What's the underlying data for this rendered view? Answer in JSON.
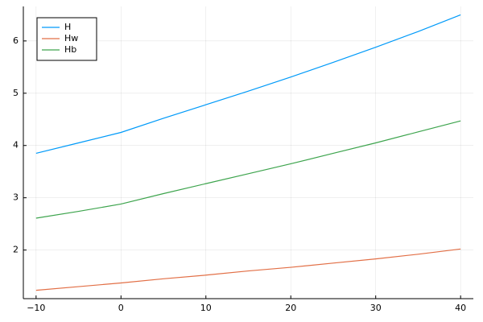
{
  "chart_data": {
    "type": "line",
    "x": [
      -10,
      -5,
      0,
      5,
      10,
      15,
      20,
      25,
      30,
      35,
      40
    ],
    "series": [
      {
        "name": "H",
        "color": "#009af9",
        "values": [
          3.85,
          4.05,
          4.25,
          4.52,
          4.78,
          5.04,
          5.31,
          5.59,
          5.88,
          6.18,
          6.5
        ]
      },
      {
        "name": "Hw",
        "color": "#e26f46",
        "values": [
          1.23,
          1.3,
          1.37,
          1.45,
          1.52,
          1.6,
          1.67,
          1.75,
          1.83,
          1.92,
          2.02
        ]
      },
      {
        "name": "Hb",
        "color": "#3da44d",
        "values": [
          2.61,
          2.74,
          2.88,
          3.08,
          3.27,
          3.46,
          3.65,
          3.85,
          4.05,
          4.26,
          4.47
        ]
      }
    ],
    "xlim": [
      -11.5,
      41.5
    ],
    "xticks": [
      {
        "value": -10,
        "label": "−10"
      },
      0,
      10,
      20,
      30,
      40
    ],
    "ylim": [
      1.07,
      6.66
    ],
    "yticks": [
      2,
      3,
      4,
      5,
      6
    ],
    "grid": true,
    "legend": "top-left"
  }
}
